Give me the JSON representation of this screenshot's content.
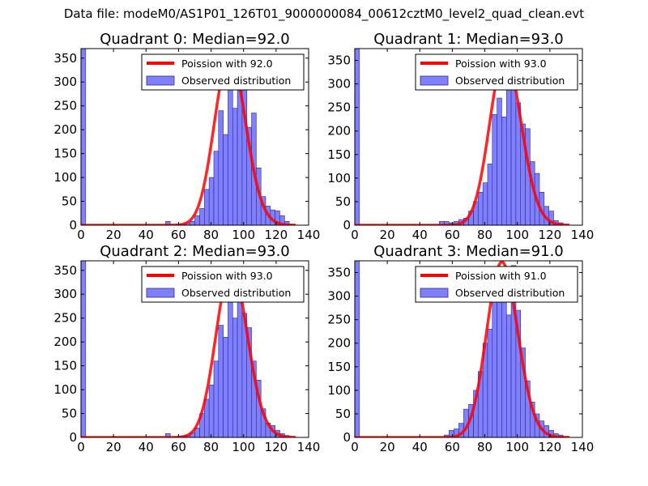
{
  "figure_title": "Data file: modeM0/AS1P01_126T01_9000000084_00612cztM0_level2_quad_clean.evt",
  "colors": {
    "hist_fill": "#8080ff",
    "hist_edge": "#2a2a8a",
    "poisson_line": "#ff0000"
  },
  "chart_data": [
    {
      "type": "bar",
      "title": "Quadrant 0: Median=92.0",
      "xlim": [
        0,
        140
      ],
      "ylim": [
        0,
        370
      ],
      "xticks": [
        "0",
        "20",
        "40",
        "60",
        "80",
        "100",
        "120",
        "140"
      ],
      "yticks": [
        "0",
        "50",
        "100",
        "150",
        "200",
        "250",
        "300",
        "350"
      ],
      "legend": {
        "position": "top-right",
        "line_label": "Poission with 92.0",
        "bar_label": "Observed distribution"
      },
      "poisson_mean": 92.0,
      "poisson_peak": 355,
      "bin_width": 2.9,
      "bars": [
        [
          0,
          370
        ],
        [
          52,
          8
        ],
        [
          61,
          2
        ],
        [
          64,
          4
        ],
        [
          67,
          8
        ],
        [
          70,
          20
        ],
        [
          73,
          35
        ],
        [
          75.9,
          75
        ],
        [
          78.8,
          100
        ],
        [
          81.7,
          155
        ],
        [
          84.6,
          240
        ],
        [
          87.5,
          190
        ],
        [
          90.4,
          300
        ],
        [
          93.3,
          245
        ],
        [
          96.2,
          355
        ],
        [
          99.1,
          290
        ],
        [
          102,
          205
        ],
        [
          104.9,
          235
        ],
        [
          107.8,
          120
        ],
        [
          110.7,
          60
        ],
        [
          113.6,
          40
        ],
        [
          116.5,
          32
        ],
        [
          119.4,
          30
        ],
        [
          122.3,
          20
        ],
        [
          125.2,
          8
        ]
      ]
    },
    {
      "type": "bar",
      "title": "Quadrant 1: Median=93.0",
      "xlim": [
        0,
        140
      ],
      "ylim": [
        0,
        375
      ],
      "xticks": [
        "0",
        "20",
        "40",
        "60",
        "80",
        "100",
        "120",
        "140"
      ],
      "yticks": [
        "0",
        "50",
        "100",
        "150",
        "200",
        "250",
        "300",
        "350"
      ],
      "legend": {
        "position": "top-right",
        "line_label": "Poission with 93.0",
        "bar_label": "Observed distribution"
      },
      "poisson_mean": 93.0,
      "poisson_peak": 360,
      "bin_width": 2.9,
      "bars": [
        [
          0,
          375
        ],
        [
          52,
          8
        ],
        [
          55,
          8
        ],
        [
          58,
          5
        ],
        [
          61,
          8
        ],
        [
          64,
          12
        ],
        [
          67,
          15
        ],
        [
          70,
          30
        ],
        [
          73,
          50
        ],
        [
          75.9,
          70
        ],
        [
          78.8,
          90
        ],
        [
          81.7,
          130
        ],
        [
          84.6,
          235
        ],
        [
          87.5,
          270
        ],
        [
          90.4,
          230
        ],
        [
          93.3,
          330
        ],
        [
          96.2,
          345
        ],
        [
          99.1,
          260
        ],
        [
          102,
          215
        ],
        [
          104.9,
          205
        ],
        [
          107.8,
          135
        ],
        [
          110.7,
          110
        ],
        [
          113.6,
          70
        ],
        [
          116.5,
          40
        ],
        [
          119.4,
          30
        ],
        [
          122.3,
          10
        ],
        [
          125.2,
          5
        ]
      ]
    },
    {
      "type": "bar",
      "title": "Quadrant 2: Median=93.0",
      "xlim": [
        0,
        140
      ],
      "ylim": [
        0,
        370
      ],
      "xticks": [
        "0",
        "20",
        "40",
        "60",
        "80",
        "100",
        "120",
        "140"
      ],
      "yticks": [
        "0",
        "50",
        "100",
        "150",
        "200",
        "250",
        "300",
        "350"
      ],
      "legend": {
        "position": "top-right",
        "line_label": "Poission with 93.0",
        "bar_label": "Observed distribution"
      },
      "poisson_mean": 93.0,
      "poisson_peak": 355,
      "bin_width": 2.9,
      "bars": [
        [
          0,
          370
        ],
        [
          52,
          8
        ],
        [
          61,
          3
        ],
        [
          64,
          5
        ],
        [
          67,
          10
        ],
        [
          70,
          20
        ],
        [
          73,
          50
        ],
        [
          75.9,
          80
        ],
        [
          78.8,
          110
        ],
        [
          81.7,
          160
        ],
        [
          84.6,
          235
        ],
        [
          87.5,
          210
        ],
        [
          90.4,
          315
        ],
        [
          93.3,
          250
        ],
        [
          96.2,
          340
        ],
        [
          99.1,
          260
        ],
        [
          102,
          230
        ],
        [
          104.9,
          160
        ],
        [
          107.8,
          120
        ],
        [
          110.7,
          60
        ],
        [
          113.6,
          30
        ],
        [
          116.5,
          25
        ],
        [
          119.4,
          15
        ],
        [
          122.3,
          8
        ],
        [
          125.2,
          4
        ]
      ]
    },
    {
      "type": "bar",
      "title": "Quadrant 3: Median=91.0",
      "xlim": [
        0,
        140
      ],
      "ylim": [
        0,
        375
      ],
      "xticks": [
        "0",
        "20",
        "40",
        "60",
        "80",
        "100",
        "120",
        "140"
      ],
      "yticks": [
        "0",
        "50",
        "100",
        "150",
        "200",
        "250",
        "300",
        "350"
      ],
      "legend": {
        "position": "top-right",
        "line_label": "Poission with 91.0",
        "bar_label": "Observed distribution"
      },
      "poisson_mean": 91.0,
      "poisson_peak": 372,
      "bin_width": 2.9,
      "bars": [
        [
          0,
          375
        ],
        [
          55,
          5
        ],
        [
          58,
          15
        ],
        [
          61,
          18
        ],
        [
          64,
          30
        ],
        [
          67,
          60
        ],
        [
          70,
          70
        ],
        [
          73,
          100
        ],
        [
          75.9,
          140
        ],
        [
          78.8,
          200
        ],
        [
          81.7,
          230
        ],
        [
          84.6,
          360
        ],
        [
          87.5,
          330
        ],
        [
          90.4,
          350
        ],
        [
          93.3,
          260
        ],
        [
          96.2,
          365
        ],
        [
          99.1,
          270
        ],
        [
          102,
          190
        ],
        [
          104.9,
          120
        ],
        [
          107.8,
          75
        ],
        [
          110.7,
          50
        ],
        [
          113.6,
          35
        ],
        [
          116.5,
          25
        ],
        [
          119.4,
          15
        ],
        [
          122.3,
          8
        ],
        [
          125.2,
          5
        ]
      ]
    }
  ]
}
